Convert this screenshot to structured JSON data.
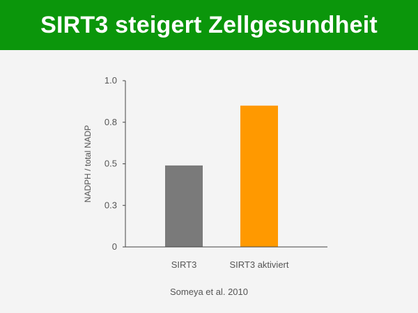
{
  "header": {
    "title": "SIRT3 steigert Zellgesundheit",
    "background": "#0b960b"
  },
  "source": "Someya et al. 2010",
  "chart_data": {
    "type": "bar",
    "title": "",
    "xlabel": "",
    "ylabel": "NADPH / total NADP",
    "ylim": [
      0,
      1.0
    ],
    "yticks": [
      0,
      0.25,
      0.5,
      0.75,
      1.0
    ],
    "ytick_labels": [
      "0",
      "0.3",
      "0.5",
      "0.8",
      "1.0"
    ],
    "categories": [
      "SIRT3",
      "SIRT3 aktiviert"
    ],
    "values": [
      0.49,
      0.85
    ],
    "colors": [
      "#7a7a7a",
      "#ff9900"
    ],
    "grid": false,
    "legend": "none"
  }
}
